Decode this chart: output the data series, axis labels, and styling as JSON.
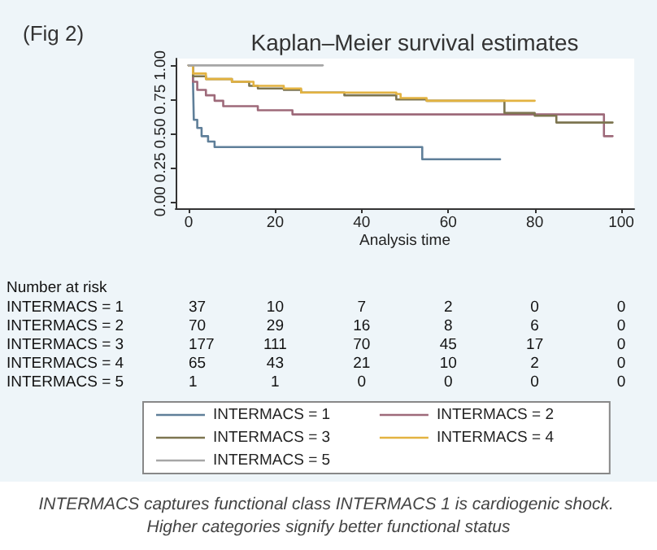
{
  "chart_data": {
    "type": "step",
    "title": "Kaplan–Meier survival estimates",
    "xlabel": "Analysis time",
    "xlim": [
      -3,
      103
    ],
    "xticks": [
      0,
      20,
      40,
      60,
      80,
      100
    ],
    "ylim": [
      -0.05,
      1.05
    ],
    "yticks": [
      {
        "value": 0,
        "label": "0.00"
      },
      {
        "value": 0.25,
        "label": "0.25"
      },
      {
        "value": 0.5,
        "label": "0.50"
      },
      {
        "value": 0.75,
        "label": "0.75"
      },
      {
        "value": 1,
        "label": "1.00"
      }
    ],
    "marker": "none",
    "legend": "bottom",
    "series": [
      {
        "name": "INTERMACS = 1",
        "color": "#5f7f99",
        "x": [
          0,
          1,
          1.2,
          2,
          3,
          4.5,
          6,
          54,
          72
        ],
        "values": [
          1,
          0.9,
          0.6,
          0.54,
          0.48,
          0.44,
          0.4,
          0.31,
          0.31
        ]
      },
      {
        "name": "INTERMACS = 2",
        "color": "#9e6a7a",
        "x": [
          0,
          1,
          2,
          4,
          6,
          8,
          16,
          24,
          96,
          98
        ],
        "values": [
          1,
          0.88,
          0.82,
          0.78,
          0.74,
          0.7,
          0.67,
          0.64,
          0.48,
          0.48
        ]
      },
      {
        "name": "INTERMACS = 3",
        "color": "#7d7550",
        "x": [
          0,
          1,
          4,
          10,
          14,
          16,
          22,
          26,
          36,
          48,
          55,
          73,
          80,
          85,
          98
        ],
        "values": [
          1,
          0.92,
          0.9,
          0.88,
          0.85,
          0.83,
          0.82,
          0.8,
          0.78,
          0.75,
          0.74,
          0.65,
          0.63,
          0.58,
          0.58
        ]
      },
      {
        "name": "INTERMACS = 4",
        "color": "#e3b341",
        "x": [
          0,
          1,
          4,
          10,
          15,
          22,
          26,
          48,
          49,
          55,
          80
        ],
        "values": [
          1,
          0.94,
          0.9,
          0.88,
          0.85,
          0.83,
          0.8,
          0.79,
          0.76,
          0.74,
          0.74
        ]
      },
      {
        "name": "INTERMACS = 5",
        "color": "#a6a6a6",
        "x": [
          0,
          31
        ],
        "values": [
          1,
          1
        ]
      }
    ],
    "annotations": [
      "(Fig 2)",
      "Number at risk",
      "INTERMACS = 1 37 10 7 2 0 0",
      "INTERMACS = 2 70 29 16 8 6 0",
      "INTERMACS = 3 177 111 70 45 17 0",
      "INTERMACS = 4 65 43 21 10 2 0",
      "INTERMACS = 5 1 1 0 0 0 0",
      "INTERMACS captures functional class INTERMACS 1 is cardiogenic shock. Higher categories signify better functional status"
    ]
  }
}
